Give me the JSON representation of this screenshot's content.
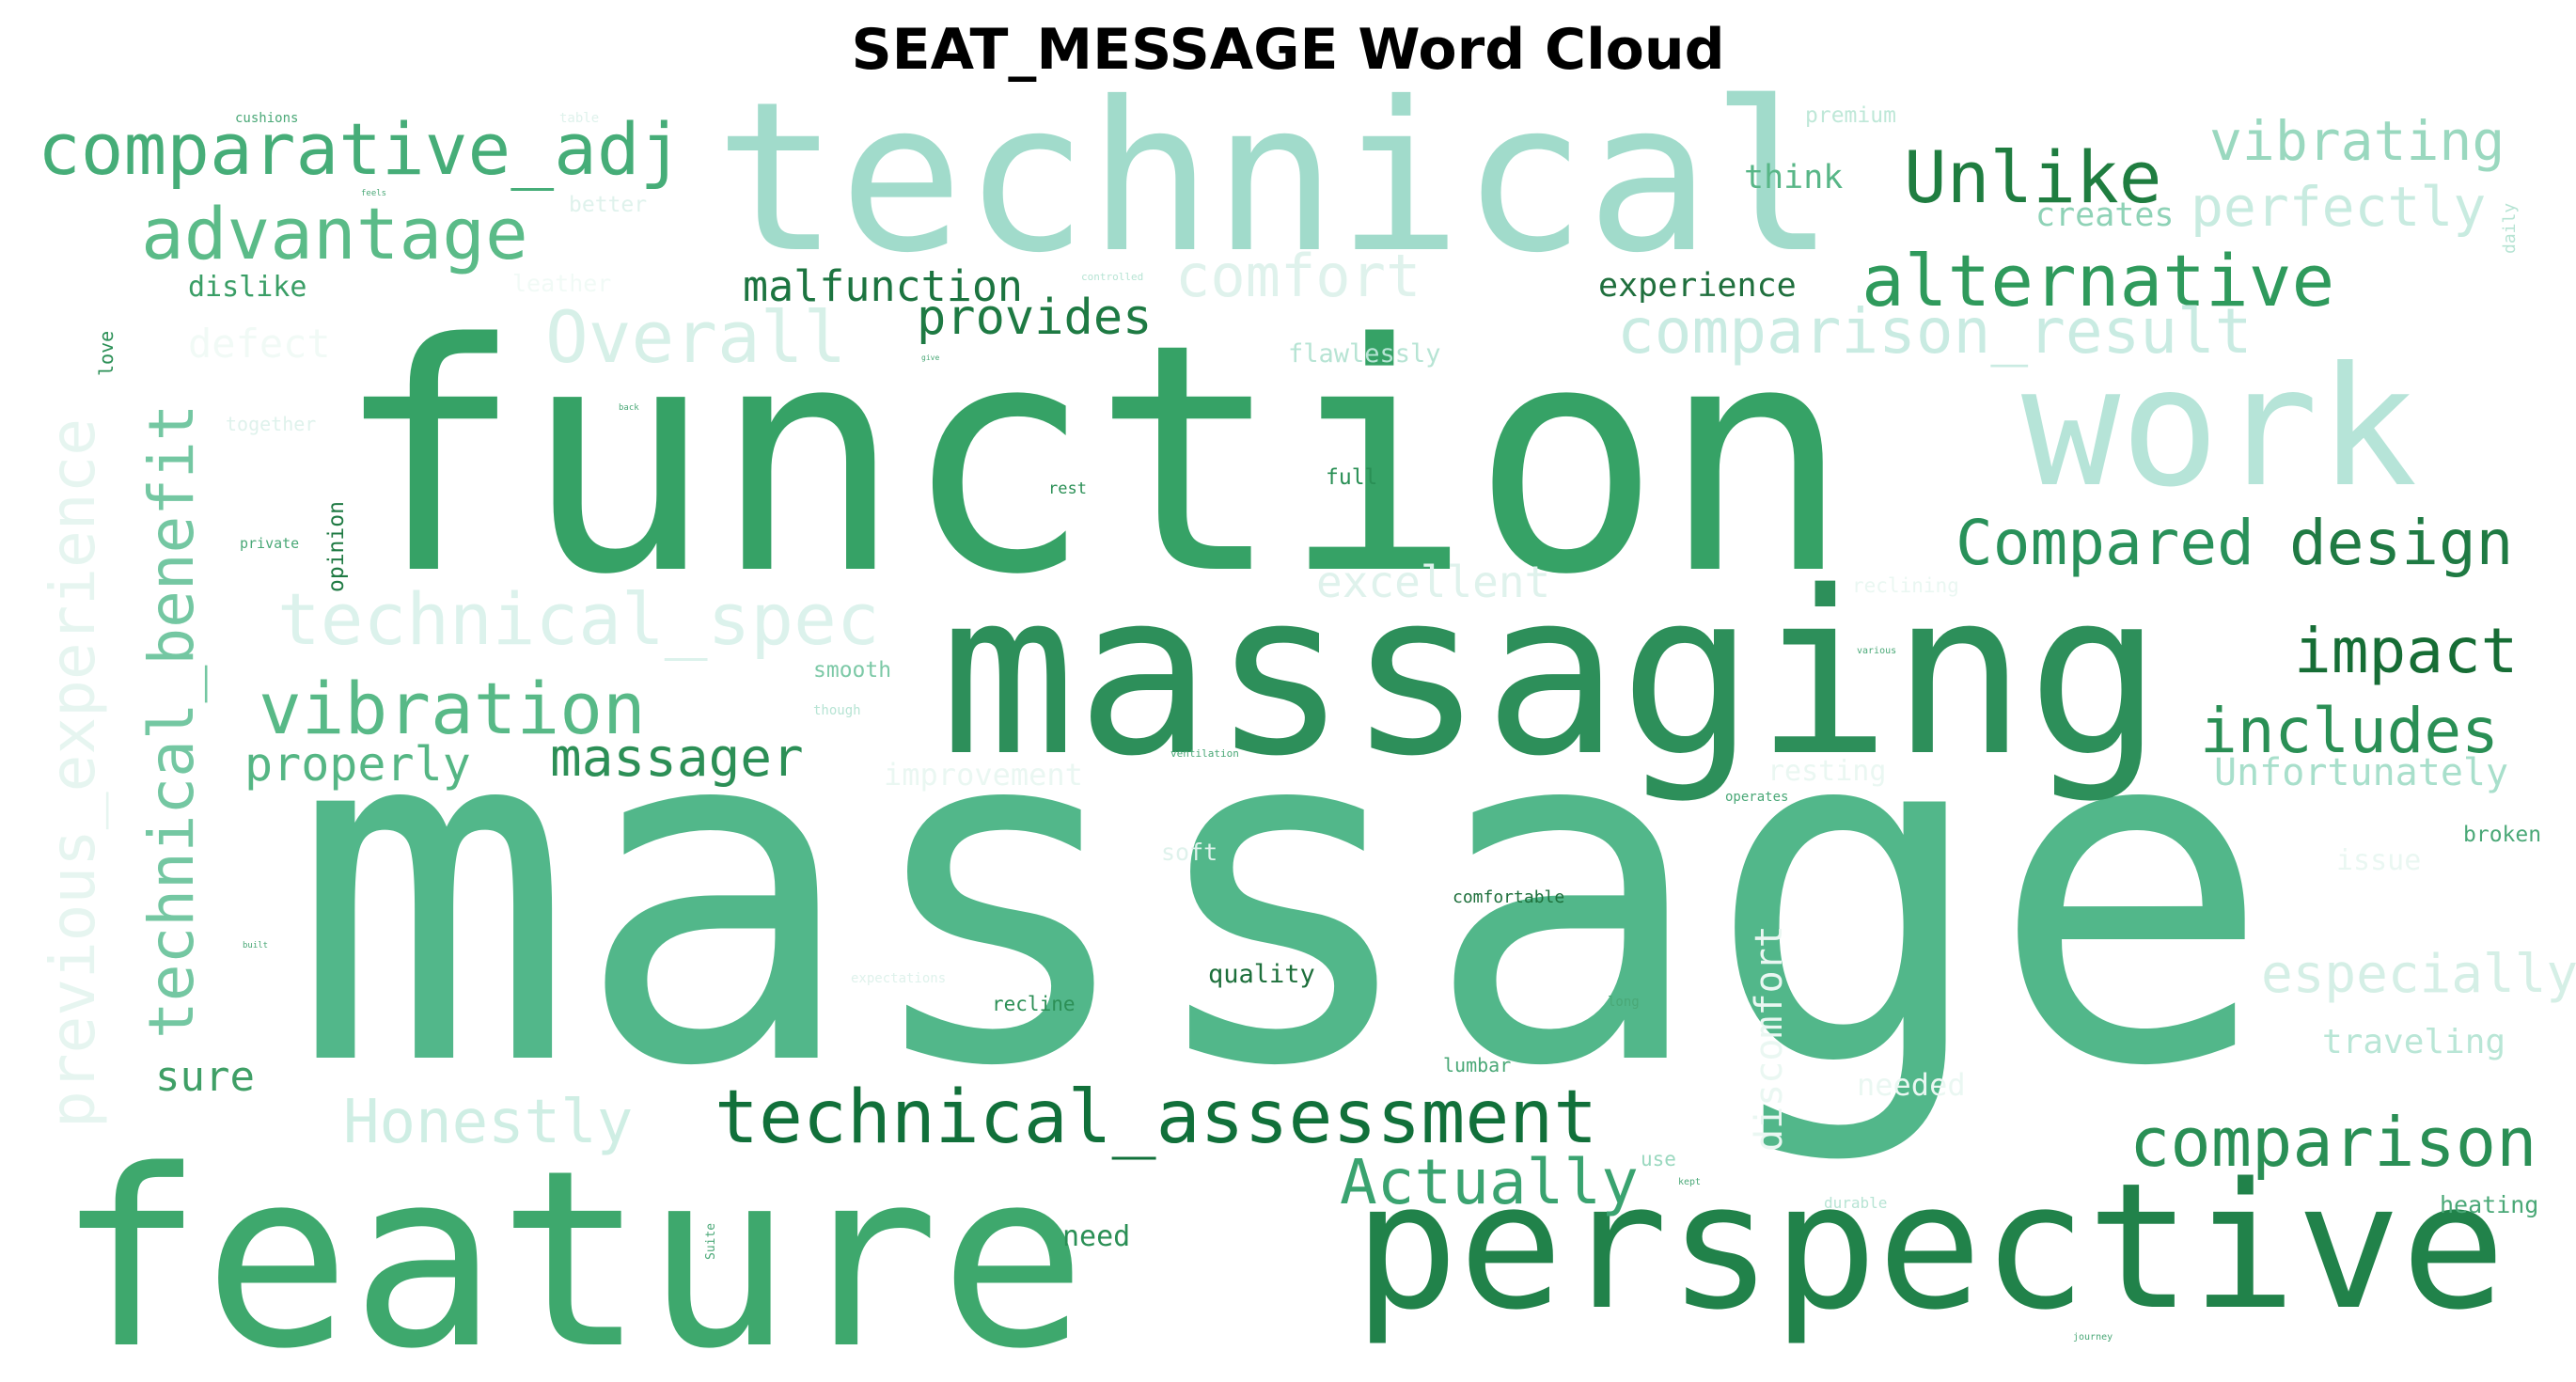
{
  "title": "SEAT_MESSAGE Word Cloud",
  "chart_data": {
    "type": "wordcloud",
    "title": "SEAT_MESSAGE Word Cloud",
    "colormap": "greens",
    "words": [
      {
        "text": "massage",
        "weight": 1.0,
        "color": "#52b78a"
      },
      {
        "text": "function",
        "weight": 0.74,
        "color": "#36a266"
      },
      {
        "text": "feature",
        "weight": 0.6,
        "color": "#3ea86d"
      },
      {
        "text": "technical",
        "weight": 0.5,
        "color": "#a1dbcb"
      },
      {
        "text": "massaging",
        "weight": 0.55,
        "color": "#2d8f5a"
      },
      {
        "text": "perspective",
        "weight": 0.43,
        "color": "#21824a"
      },
      {
        "text": "work",
        "weight": 0.4,
        "color": "#b6e4d8"
      },
      {
        "text": "technical_assessment",
        "weight": 0.16,
        "color": "#11703a"
      },
      {
        "text": "comparative_adj",
        "weight": 0.16,
        "color": "#46ad78"
      },
      {
        "text": "advantage",
        "weight": 0.15,
        "color": "#5bbb88"
      },
      {
        "text": "Unlike",
        "weight": 0.15,
        "color": "#1f7d40"
      },
      {
        "text": "alternative",
        "weight": 0.15,
        "color": "#2f9a5c"
      },
      {
        "text": "vibration",
        "weight": 0.15,
        "color": "#58b987"
      },
      {
        "text": "comparison",
        "weight": 0.14,
        "color": "#2a8f55"
      },
      {
        "text": "Compared",
        "weight": 0.14,
        "color": "#29915a"
      },
      {
        "text": "design",
        "weight": 0.14,
        "color": "#1f7a43"
      },
      {
        "text": "includes",
        "weight": 0.13,
        "color": "#2a8f55"
      },
      {
        "text": "impact",
        "weight": 0.13,
        "color": "#166d35"
      },
      {
        "text": "Actually",
        "weight": 0.13,
        "color": "#3aa370"
      },
      {
        "text": "comparison_result",
        "weight": 0.13,
        "color": "#c9ebe2"
      },
      {
        "text": "technical_spec",
        "weight": 0.14,
        "color": "#dcf2ec"
      },
      {
        "text": "technical_benefit",
        "weight": 0.12,
        "color": "#74c7a2"
      },
      {
        "text": "previous_experience",
        "weight": 0.12,
        "color": "#e6f5f0"
      },
      {
        "text": "Overall",
        "weight": 0.14,
        "color": "#d7f0e8"
      },
      {
        "text": "comfort",
        "weight": 0.12,
        "color": "#dff2ec"
      },
      {
        "text": "Honestly",
        "weight": 0.12,
        "color": "#cfeee4"
      },
      {
        "text": "vibrating",
        "weight": 0.11,
        "color": "#9ad8bf"
      },
      {
        "text": "perfectly",
        "weight": 0.11,
        "color": "#c8ebe0"
      },
      {
        "text": "especially",
        "weight": 0.11,
        "color": "#d5efe6"
      },
      {
        "text": "massager",
        "weight": 0.1,
        "color": "#2c8f56"
      },
      {
        "text": "properly",
        "weight": 0.1,
        "color": "#55b684"
      },
      {
        "text": "provides",
        "weight": 0.1,
        "color": "#1e7a43"
      },
      {
        "text": "malfunction",
        "weight": 0.09,
        "color": "#1c7440"
      },
      {
        "text": "excellent",
        "weight": 0.09,
        "color": "#dff2ec"
      },
      {
        "text": "Unfortunately",
        "weight": 0.08,
        "color": "#a8dfcb"
      },
      {
        "text": "sure",
        "weight": 0.08,
        "color": "#3f9f66"
      },
      {
        "text": "traveling",
        "weight": 0.07,
        "color": "#b9e6d6"
      },
      {
        "text": "think",
        "weight": 0.07,
        "color": "#58b687"
      },
      {
        "text": "creates",
        "weight": 0.07,
        "color": "#8ed2b6"
      },
      {
        "text": "experience",
        "weight": 0.07,
        "color": "#1f6f3d"
      },
      {
        "text": "dislike",
        "weight": 0.06,
        "color": "#3a9e66"
      },
      {
        "text": "discomfort",
        "weight": 0.06,
        "color": "#eaf7f2"
      },
      {
        "text": "improvement",
        "weight": 0.05,
        "color": "#eaf7f2"
      },
      {
        "text": "defect",
        "weight": 0.07,
        "color": "#f1faf6"
      },
      {
        "text": "flawlessly",
        "weight": 0.05,
        "color": "#b7e4d4"
      },
      {
        "text": "resting",
        "weight": 0.05,
        "color": "#eaf7f2"
      },
      {
        "text": "issue",
        "weight": 0.05,
        "color": "#eaf7f2"
      },
      {
        "text": "needed",
        "weight": 0.05,
        "color": "#eaf7f2"
      },
      {
        "text": "broken",
        "weight": 0.04,
        "color": "#4aa877"
      },
      {
        "text": "heating",
        "weight": 0.04,
        "color": "#4aa877"
      },
      {
        "text": "need",
        "weight": 0.05,
        "color": "#2a8f55"
      },
      {
        "text": "quality",
        "weight": 0.05,
        "color": "#1d6f3b"
      },
      {
        "text": "recline",
        "weight": 0.04,
        "color": "#2c8f56"
      },
      {
        "text": "smooth",
        "weight": 0.04,
        "color": "#7dc9a7"
      },
      {
        "text": "full",
        "weight": 0.04,
        "color": "#2a8f55"
      },
      {
        "text": "opinion",
        "weight": 0.04,
        "color": "#1f7a43"
      },
      {
        "text": "comfortable",
        "weight": 0.03,
        "color": "#1d6f3b"
      },
      {
        "text": "premium",
        "weight": 0.04,
        "color": "#bfe8d8"
      },
      {
        "text": "better",
        "weight": 0.04,
        "color": "#dff2ec"
      },
      {
        "text": "leather",
        "weight": 0.04,
        "color": "#f1faf6"
      },
      {
        "text": "together",
        "weight": 0.04,
        "color": "#dff2ec"
      },
      {
        "text": "soft",
        "weight": 0.04,
        "color": "#dff2ec"
      },
      {
        "text": "lumbar",
        "weight": 0.03,
        "color": "#4aa877"
      },
      {
        "text": "durable",
        "weight": 0.03,
        "color": "#b7e4d4"
      },
      {
        "text": "love",
        "weight": 0.03,
        "color": "#2a8f55"
      },
      {
        "text": "rest",
        "weight": 0.03,
        "color": "#2a8f55"
      },
      {
        "text": "private",
        "weight": 0.03,
        "color": "#4aa877"
      },
      {
        "text": "reclining",
        "weight": 0.03,
        "color": "#eaf7f2"
      },
      {
        "text": "use",
        "weight": 0.03,
        "color": "#9ad8bf"
      },
      {
        "text": "long",
        "weight": 0.02,
        "color": "#4aa877"
      },
      {
        "text": "daily",
        "weight": 0.03,
        "color": "#b7e4d4"
      },
      {
        "text": "cushions",
        "weight": 0.03,
        "color": "#4aa877"
      },
      {
        "text": "table",
        "weight": 0.03,
        "color": "#dff2ec"
      },
      {
        "text": "operates",
        "weight": 0.02,
        "color": "#4aa877"
      },
      {
        "text": "ventilation",
        "weight": 0.02,
        "color": "#4aa877"
      },
      {
        "text": "controlled",
        "weight": 0.02,
        "color": "#b7e4d4"
      },
      {
        "text": "various",
        "weight": 0.02,
        "color": "#4aa877"
      },
      {
        "text": "though",
        "weight": 0.02,
        "color": "#b7e4d4"
      },
      {
        "text": "expectations",
        "weight": 0.02,
        "color": "#dff2ec"
      },
      {
        "text": "Suite",
        "weight": 0.02,
        "color": "#4aa877"
      },
      {
        "text": "journey",
        "weight": 0.02,
        "color": "#4aa877"
      },
      {
        "text": "kept",
        "weight": 0.02,
        "color": "#4aa877"
      },
      {
        "text": "built",
        "weight": 0.02,
        "color": "#4aa877"
      },
      {
        "text": "back",
        "weight": 0.02,
        "color": "#4aa877"
      },
      {
        "text": "give",
        "weight": 0.02,
        "color": "#4aa877"
      },
      {
        "text": "feels",
        "weight": 0.02,
        "color": "#4aa877"
      }
    ]
  }
}
